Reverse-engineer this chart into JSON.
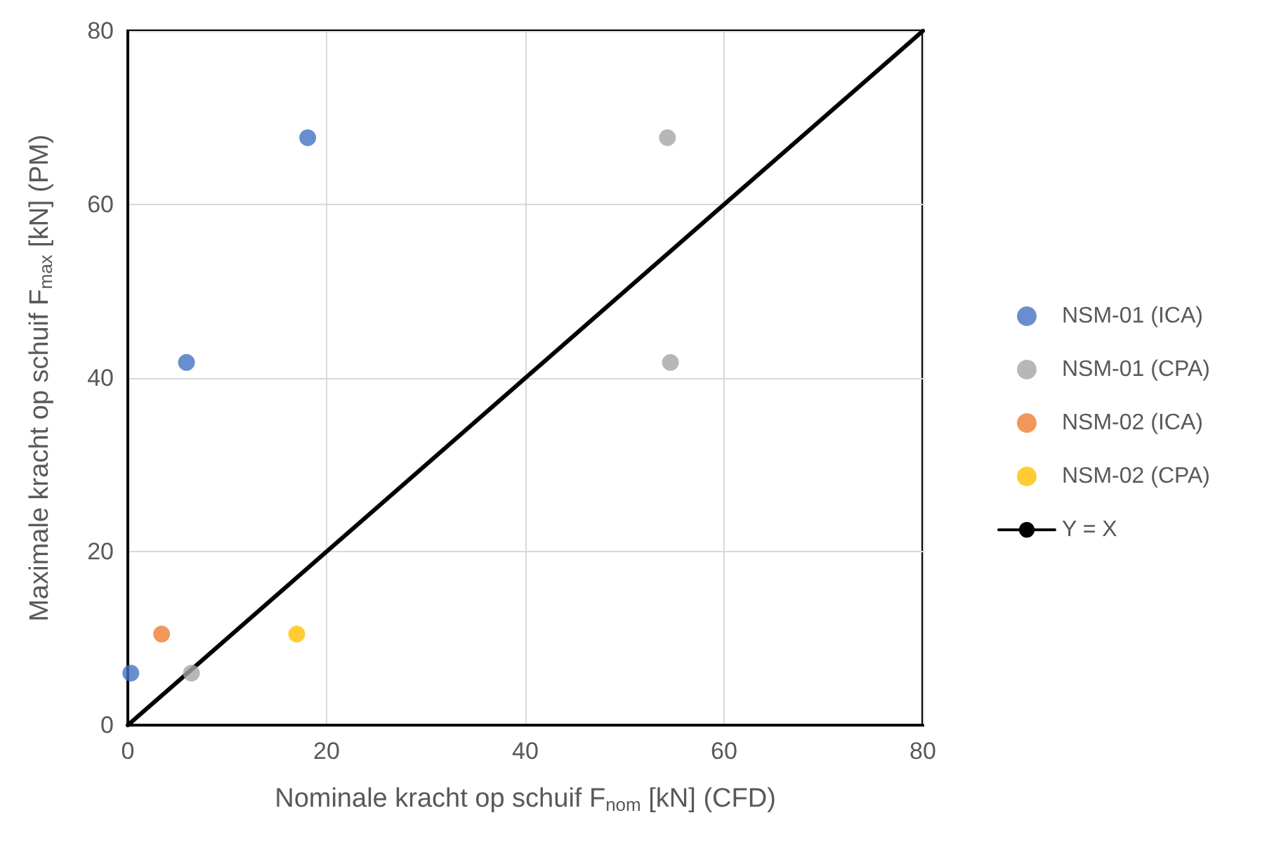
{
  "chart_data": {
    "type": "scatter",
    "xlabel": "Nominale kracht op schuif F$_{nom}$ [kN] (CFD)",
    "ylabel": "Maximale kracht op schuif F$_{max}$ [kN] (PM)",
    "series": [
      {
        "name": "NSM-01 (ICA)",
        "color": "#4472c4",
        "x": [
          0.3,
          5.9,
          18.1
        ],
        "values": [
          6.0,
          41.8,
          67.7
        ]
      },
      {
        "name": "NSM-01 (CPA)",
        "color": "#a5a5a5",
        "x": [
          6.4,
          54.6,
          54.3
        ],
        "values": [
          6.0,
          41.8,
          67.7
        ]
      },
      {
        "name": "NSM-02 (ICA)",
        "color": "#ed7d31",
        "x": [
          3.4
        ],
        "values": [
          10.5
        ]
      },
      {
        "name": "NSM-02 (CPA)",
        "color": "#ffc000",
        "x": [
          17.0
        ],
        "values": [
          10.5
        ]
      },
      {
        "name": "Y = X",
        "type": "line",
        "color": "#000000",
        "marker": "none",
        "line_style": "solid",
        "x": [
          0,
          80
        ],
        "values": [
          0,
          80
        ]
      }
    ],
    "xlim": [
      0,
      80
    ],
    "xticks": [
      0,
      20,
      40,
      60,
      80
    ],
    "ylim": [
      0,
      80
    ],
    "yticks": [
      0,
      20,
      40,
      60,
      80
    ],
    "grid": true,
    "legend": "right",
    "marker": "circle"
  }
}
